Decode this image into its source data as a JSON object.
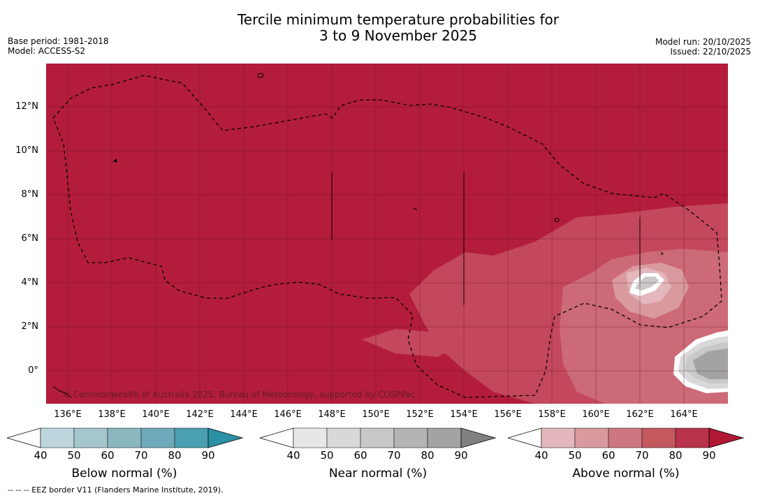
{
  "title": {
    "line1": "Tercile minimum temperature probabilities for",
    "line2": "3 to 9 November 2025"
  },
  "meta": {
    "base_period": "Base period: 1981-2018",
    "model": "Model: ACCESS-S2",
    "model_run": "Model run: 20/10/2025",
    "issued": "Issued: 22/10/2025"
  },
  "map": {
    "lat_ticks": [
      "12°N",
      "10°N",
      "8°N",
      "6°N",
      "4°N",
      "2°N",
      "0°"
    ],
    "lon_ticks": [
      "136°E",
      "138°E",
      "140°E",
      "142°E",
      "144°E",
      "146°E",
      "148°E",
      "150°E",
      "152°E",
      "154°E",
      "156°E",
      "158°E",
      "160°E",
      "162°E",
      "164°E"
    ],
    "copyright": "© Commonwealth of Australia 2025, Bureau of Meteorology, supported by COSPPac",
    "colors": {
      "above_80": "#b31d3b",
      "above_70": "#c4485b",
      "above_60": "#cd6a77",
      "above_50": "#d99a9f",
      "above_40": "#e3b7bb",
      "near_50": "#d8d8d8",
      "near_60": "#c8c8c8",
      "near_70": "#b4b4b4",
      "near_80": "#a3a3a3"
    }
  },
  "colorbars": [
    {
      "label": "Below normal (%)",
      "ticks": [
        "40",
        "50",
        "60",
        "70",
        "80",
        "90"
      ],
      "colors": [
        "#bdd5dc",
        "#a5c6cd",
        "#8bb7c1",
        "#6eaabb",
        "#4a9fb0",
        "#2b91a5"
      ]
    },
    {
      "label": "Near normal (%)",
      "ticks": [
        "40",
        "50",
        "60",
        "70",
        "80",
        "90"
      ],
      "colors": [
        "#e7e7e7",
        "#d8d8d8",
        "#c8c8c8",
        "#b4b4b4",
        "#a3a3a3",
        "#808080"
      ]
    },
    {
      "label": "Above normal (%)",
      "ticks": [
        "40",
        "50",
        "60",
        "70",
        "80",
        "90"
      ],
      "colors": [
        "#e3b7bb",
        "#d99a9f",
        "#cd7780",
        "#c4585f",
        "#b8324a",
        "#b01834"
      ]
    }
  ],
  "footnote": "--  --  -- EEZ border V11 (Flanders Marine Institute, 2019)."
}
